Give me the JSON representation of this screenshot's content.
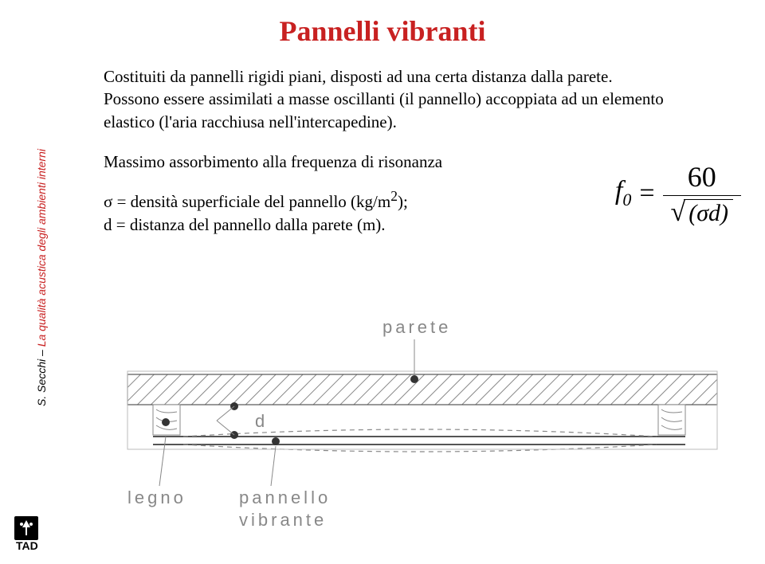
{
  "title": {
    "text": "Pannelli vibranti",
    "color": "#c82121",
    "fontsize": 36
  },
  "para1": "Costituiti da pannelli rigidi piani, disposti ad una certa distanza dalla parete.",
  "para2": "Possono essere assimilati a masse oscillanti (il pannello) accoppiata ad un elemento elastico (l'aria racchiusa nell'intercapedine).",
  "para3": "Massimo assorbimento alla frequenza di risonanza",
  "sigma_line": "σ = densità superficiale del pannello (kg/m",
  "sigma_sup": "2",
  "sigma_tail": ");",
  "d_line": "d =  distanza del pannello dalla parete (m).",
  "body_fontsize": 21,
  "formula": {
    "lhs": "f",
    "sub": "0",
    "eq": "=",
    "num": "60",
    "den": "(σd)"
  },
  "sidebar": {
    "author": "S. Secchi – ",
    "topic": "La qualità acustica degli ambienti interni",
    "topic_color": "#c82121",
    "fontsize": 14
  },
  "diagram": {
    "label_parete": "parete",
    "label_d": "d",
    "label_legno": "legno",
    "label_pannello_top": "pannello",
    "label_pannello_bot": "vibrante",
    "line_color": "#888888",
    "hatch_color": "#888888",
    "edge_color": "#333333",
    "wood_color": "#888888"
  },
  "logo": {
    "bg": "#000000",
    "inner": "#ffffff",
    "text": "TAD"
  }
}
